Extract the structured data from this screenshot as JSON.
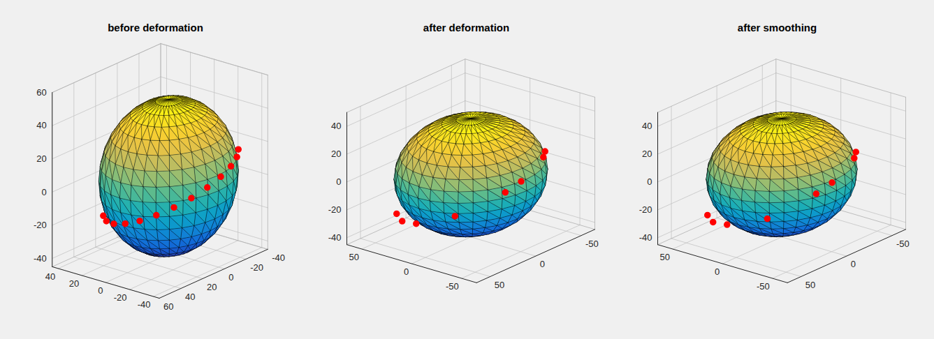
{
  "chart_data": [
    {
      "type": "surface3d",
      "title": "before deformation",
      "xlim": [
        -40,
        60
      ],
      "ylim": [
        -45,
        45
      ],
      "zlim": [
        -45,
        60
      ],
      "xticks": [
        -40,
        -20,
        0,
        20,
        40,
        60
      ],
      "yticks": [
        -40,
        -20,
        0,
        20,
        40
      ],
      "zticks": [
        -40,
        -20,
        0,
        20,
        40,
        60
      ],
      "grid": true,
      "surface": {
        "center": [
          2,
          0,
          2
        ],
        "radii": [
          45,
          42,
          46
        ]
      },
      "markers": {
        "color": "#ff0000",
        "marker": "circle",
        "points": [
          [
            29.7,
            29.7,
            -20
          ],
          [
            36.4,
            21.0,
            -19.4
          ],
          [
            40.6,
            10.9,
            -17.7
          ],
          [
            42.0,
            0,
            -14.9
          ],
          [
            40.6,
            -10.9,
            -11.3
          ],
          [
            36.4,
            -21.0,
            -7.0
          ],
          [
            29.7,
            -29.7,
            -2.5
          ],
          [
            21.0,
            -36.4,
            2.0
          ],
          [
            10.9,
            -40.6,
            6.3
          ],
          [
            0,
            -42.0,
            9.9
          ],
          [
            -10.9,
            -40.6,
            12.7
          ],
          [
            -21.0,
            -36.4,
            14.4
          ],
          [
            -29.7,
            -29.7,
            15.0
          ]
        ]
      }
    },
    {
      "type": "surface3d",
      "title": "after deformation",
      "xlim": [
        -65,
        65
      ],
      "ylim": [
        -65,
        65
      ],
      "zlim": [
        -45,
        50
      ],
      "xticks": [
        -50,
        0,
        50
      ],
      "yticks": [
        -50,
        0,
        50
      ],
      "zticks": [
        -40,
        -20,
        0,
        20,
        40
      ],
      "grid": true,
      "surface": {
        "center": [
          0,
          0,
          0
        ],
        "radii": [
          58,
          56,
          40
        ]
      },
      "markers": {
        "color": "#ff0000",
        "marker": "circle",
        "points": [
          [
            38.9,
            38.9,
            -25
          ],
          [
            49.9,
            23.3,
            -23.8
          ],
          [
            54.8,
            4.8,
            -20.3
          ],
          [
            47.6,
            -27.5,
            -10.2
          ],
          [
            18.8,
            -51.7,
            3.5
          ],
          [
            4.8,
            -54.8,
            7.9
          ],
          [
            -27.5,
            -47.6,
            14.3
          ],
          [
            -35.4,
            -42.1,
            14.9
          ]
        ]
      }
    },
    {
      "type": "surface3d",
      "title": "after smoothing",
      "xlim": [
        -65,
        65
      ],
      "ylim": [
        -65,
        65
      ],
      "zlim": [
        -45,
        50
      ],
      "xticks": [
        -50,
        0,
        50
      ],
      "yticks": [
        -50,
        0,
        50
      ],
      "zticks": [
        -40,
        -20,
        0,
        20,
        40
      ],
      "grid": true,
      "surface": {
        "center": [
          0,
          0,
          0
        ],
        "radii": [
          57,
          55,
          40
        ]
      },
      "markers": {
        "color": "#ff0000",
        "marker": "circle",
        "points": [
          [
            38.9,
            38.9,
            -26
          ],
          [
            49.9,
            23.3,
            -24.5
          ],
          [
            54.8,
            4.8,
            -21
          ],
          [
            46.0,
            -27.5,
            -12.5
          ],
          [
            18.8,
            -51.7,
            2.5
          ],
          [
            4.8,
            -54.8,
            7.0
          ],
          [
            -27.5,
            -47.6,
            13.5
          ],
          [
            -35.4,
            -42.1,
            14.5
          ]
        ]
      }
    }
  ]
}
